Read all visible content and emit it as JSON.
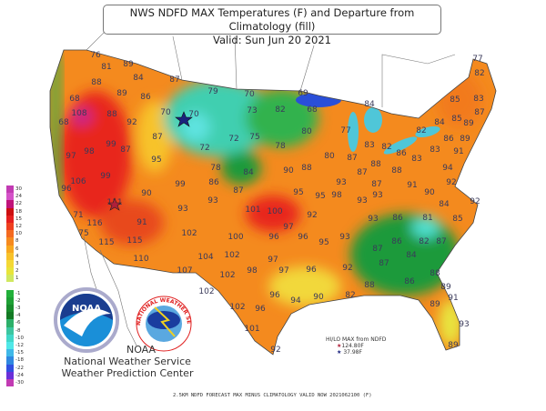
{
  "title": {
    "line1": "NWS NDFD MAX Temperatures (F) and Departure from Climatology (fill)",
    "line2": "Valid: Sun Jun 20 2021"
  },
  "legend": [
    {
      "label": "30",
      "color": "#c23bb3"
    },
    {
      "label": "24",
      "color": "#d452c8"
    },
    {
      "label": "22",
      "color": "#c0147a"
    },
    {
      "label": "18",
      "color": "#cc0f10"
    },
    {
      "label": "15",
      "color": "#e51f1f"
    },
    {
      "label": "12",
      "color": "#ef4020"
    },
    {
      "label": "10",
      "color": "#f46a20"
    },
    {
      "label": "8",
      "color": "#f68a1e"
    },
    {
      "label": "6",
      "color": "#f8a81e"
    },
    {
      "label": "4",
      "color": "#f8c22a"
    },
    {
      "label": "3",
      "color": "#f4d835"
    },
    {
      "label": "2",
      "color": "#e8e43a"
    },
    {
      "label": "1",
      "color": "#d0e860"
    },
    {
      "label": "",
      "color": "#ffffff"
    },
    {
      "label": "-1",
      "color": "#22b03a"
    },
    {
      "label": "-2",
      "color": "#1ea035"
    },
    {
      "label": "-3",
      "color": "#188c2c"
    },
    {
      "label": "-4",
      "color": "#137a24"
    },
    {
      "label": "-6",
      "color": "#2db06a"
    },
    {
      "label": "-8",
      "color": "#3cc6a0"
    },
    {
      "label": "-10",
      "color": "#40d8c8"
    },
    {
      "label": "-12",
      "color": "#50e8e8"
    },
    {
      "label": "-15",
      "color": "#3fb8e8"
    },
    {
      "label": "-18",
      "color": "#2f88e0"
    },
    {
      "label": "-22",
      "color": "#3050e0"
    },
    {
      "label": "-24",
      "color": "#6a30d8"
    },
    {
      "label": "-30",
      "color": "#c23bb3"
    }
  ],
  "temperatures": [
    "76",
    "81",
    "89",
    "84",
    "88",
    "89",
    "86",
    "68",
    "108",
    "88",
    "92",
    "68",
    "87",
    "99",
    "98",
    "87",
    "97",
    "95",
    "87",
    "79",
    "70",
    "70",
    "70",
    "73",
    "72",
    "75",
    "72",
    "78",
    "84",
    "99",
    "77",
    "82",
    "69",
    "83",
    "85",
    "82",
    "68",
    "84",
    "85",
    "84",
    "87",
    "89",
    "82",
    "80",
    "77",
    "78",
    "86",
    "89",
    "83",
    "82",
    "86",
    "83",
    "91",
    "80",
    "87",
    "83",
    "88",
    "88",
    "94",
    "90",
    "88",
    "87",
    "106",
    "96",
    "99",
    "86",
    "87",
    "90",
    "93",
    "111",
    "93",
    "71",
    "101",
    "100",
    "116",
    "91",
    "75",
    "102",
    "96",
    "100",
    "115",
    "115",
    "102",
    "104",
    "110",
    "97",
    "107",
    "102",
    "98",
    "102",
    "96",
    "96",
    "102",
    "101",
    "92",
    "93",
    "87",
    "91",
    "92",
    "95",
    "95",
    "98",
    "93",
    "93",
    "90",
    "92",
    "84",
    "92",
    "93",
    "86",
    "81",
    "85",
    "97",
    "96",
    "95",
    "93",
    "86",
    "82",
    "87",
    "87",
    "84",
    "97",
    "96",
    "92",
    "87",
    "88",
    "88",
    "86",
    "89",
    "82",
    "94",
    "90",
    "91",
    "89",
    "93",
    "89"
  ],
  "hilo": {
    "title": "HI/LO MAX from NDFD",
    "hi": "124.80F",
    "lo": "37.98F",
    "hi_color": "#b0203a",
    "lo_color": "#1a237e"
  },
  "credits": {
    "noaa_logo": "NOAA",
    "nws_logo": "NATIONAL WEATHER SERVICE",
    "line1": "NOAA",
    "line2": "National Weather Service",
    "line3": "Weather Prediction Center"
  },
  "footer": "2.5KM NDFD FORECAST MAX MINUS CLIMATOLOGY VALID NOW 2021062100 (F)"
}
